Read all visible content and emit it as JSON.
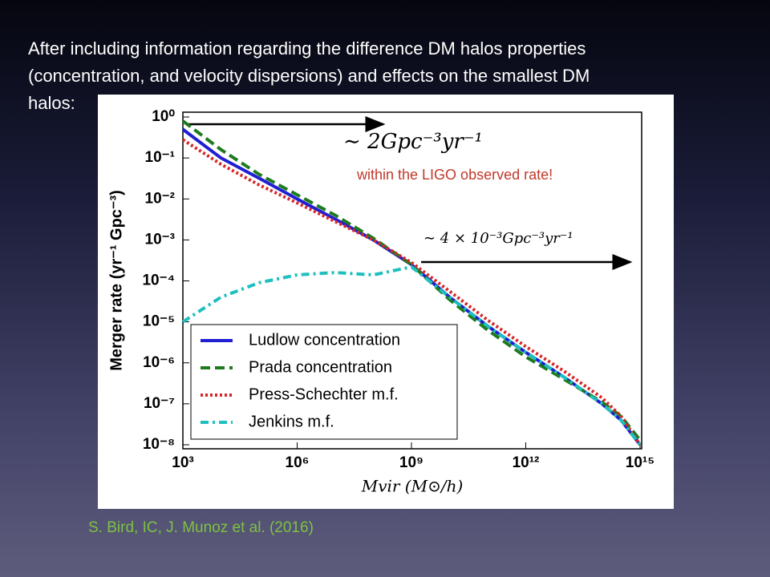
{
  "slide": {
    "text_lines": [
      "After including information regarding the difference DM halos properties",
      "(concentration, and velocity dispersions) and effects on the smallest DM",
      "halos:"
    ],
    "citation": "S. Bird, IC, J. Munoz et al. (2016)"
  },
  "chart_data": {
    "type": "line",
    "x_label": "Mvir (M⊙/h)",
    "y_label": "Merger rate (yr⁻¹ Gpc⁻³)",
    "annotations": [
      "∼ 2Gpc⁻³yr⁻¹",
      "within the LIGO observed rate!",
      "∼ 4 × 10⁻³Gpc⁻³yr⁻¹"
    ],
    "x_log": true,
    "y_log": true,
    "xlim": [
      1000,
      1000000000000000.0
    ],
    "ylim": [
      1e-08,
      1
    ],
    "xticks": [
      {
        "value": 1000,
        "label": "10³"
      },
      {
        "value": 1000000.0,
        "label": "10⁶"
      },
      {
        "value": 1000000000.0,
        "label": "10⁹"
      },
      {
        "value": 1000000000000.0,
        "label": "10¹²"
      },
      {
        "value": 1000000000000000.0,
        "label": "10¹⁵"
      }
    ],
    "yticks": [
      {
        "value": 1,
        "label": "10⁰"
      },
      {
        "value": 0.1,
        "label": "10⁻¹"
      },
      {
        "value": 0.01,
        "label": "10⁻²"
      },
      {
        "value": 0.001,
        "label": "10⁻³"
      },
      {
        "value": 0.0001,
        "label": "10⁻⁴"
      },
      {
        "value": 1e-05,
        "label": "10⁻⁵"
      },
      {
        "value": 1e-06,
        "label": "10⁻⁶"
      },
      {
        "value": 1e-07,
        "label": "10⁻⁷"
      },
      {
        "value": 1e-08,
        "label": "10⁻⁸"
      }
    ],
    "x": [
      1000,
      10000,
      100000,
      1000000.0,
      10000000.0,
      100000000.0,
      1000000000.0,
      10000000000.0,
      100000000000.0,
      1000000000000.0,
      10000000000000.0,
      100000000000000.0,
      316000000000000.0,
      1000000000000000.0
    ],
    "series": [
      {
        "name": "Ludlow concentration",
        "color": "#1f1fd1",
        "style": "solid",
        "values": [
          0.5,
          0.1,
          0.032,
          0.01,
          0.0032,
          0.001,
          0.00025,
          4e-05,
          7.9e-06,
          1.8e-06,
          4.5e-07,
          1e-07,
          4e-08,
          1e-08
        ]
      },
      {
        "name": "Prada concentration",
        "color": "#1e7a1e",
        "style": "dashed",
        "values": [
          0.8,
          0.16,
          0.04,
          0.0126,
          0.004,
          0.0011,
          0.00025,
          3.5e-05,
          6.3e-06,
          1.4e-06,
          4e-07,
          1.1e-07,
          5e-08,
          1.3e-08
        ]
      },
      {
        "name": "Press-Schechter m.f.",
        "color": "#d62728",
        "style": "dotted",
        "values": [
          0.28,
          0.07,
          0.022,
          0.008,
          0.0028,
          0.001,
          0.00028,
          5.6e-05,
          1.1e-05,
          2.5e-06,
          6.3e-07,
          1.4e-07,
          5e-08,
          1e-08
        ]
      },
      {
        "name": "Jenkins m.f.",
        "color": "#1fbfbf",
        "style": "dashdot",
        "values": [
          1e-05,
          4e-05,
          9e-05,
          0.00014,
          0.00016,
          0.00014,
          0.00022,
          4e-05,
          7.9e-06,
          1.8e-06,
          4.5e-07,
          1e-07,
          4e-08,
          1e-08
        ]
      }
    ]
  }
}
